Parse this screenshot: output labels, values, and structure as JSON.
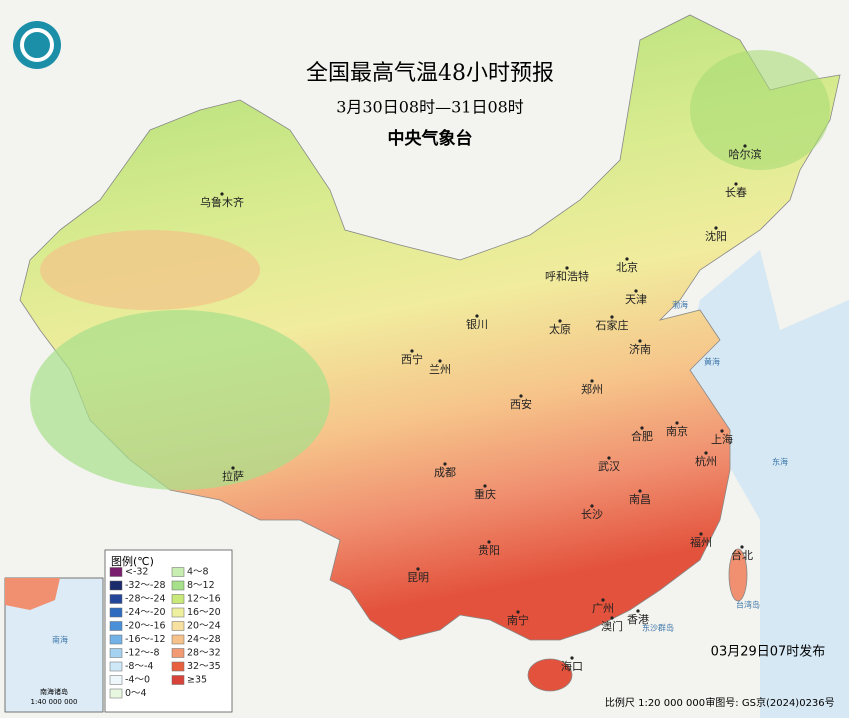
{
  "header": {
    "title": "全国最高气温48小时预报",
    "period": "3月30日08时—31日08时",
    "issuer": "中央气象台"
  },
  "cities": [
    "乌鲁木齐",
    "呼和浩特",
    "北京",
    "天津",
    "沈阳",
    "长春",
    "哈尔滨",
    "银川",
    "太原",
    "石家庄",
    "济南",
    "西宁",
    "兰州",
    "郑州",
    "西安",
    "合肥",
    "南京",
    "上海",
    "杭州",
    "武汉",
    "成都",
    "重庆",
    "拉萨",
    "长沙",
    "南昌",
    "福州",
    "台北",
    "贵阳",
    "昆明",
    "南宁",
    "广州",
    "香港",
    "澳门",
    "海口"
  ],
  "seas": [
    "渤海",
    "黄海",
    "东海",
    "台湾岛",
    "东沙群岛",
    "南海"
  ],
  "legend": {
    "title": "图例(℃)",
    "items": [
      {
        "label": "<-32",
        "color": "#7a1f6e"
      },
      {
        "label": "-32～-28",
        "color": "#1b2a6b"
      },
      {
        "label": "-28～-24",
        "color": "#23459a"
      },
      {
        "label": "-24～-20",
        "color": "#2f6cc0"
      },
      {
        "label": "-20～-16",
        "color": "#4a90d9"
      },
      {
        "label": "-16～-12",
        "color": "#73b2e6"
      },
      {
        "label": "-12～-8",
        "color": "#a5d2f0"
      },
      {
        "label": "-8～-4",
        "color": "#cfe8f7"
      },
      {
        "label": "-4～0",
        "color": "#eef7fb"
      },
      {
        "label": "0～4",
        "color": "#e8f7e0"
      },
      {
        "label": "4～8",
        "color": "#c8edb0"
      },
      {
        "label": "8～12",
        "color": "#a6e08a"
      },
      {
        "label": "12～16",
        "color": "#c9e87a"
      },
      {
        "label": "16～20",
        "color": "#eef0a0"
      },
      {
        "label": "20～24",
        "color": "#f7e0a0"
      },
      {
        "label": "24～28",
        "color": "#f6c28c"
      },
      {
        "label": "28～32",
        "color": "#f29a74"
      },
      {
        "label": "32～35",
        "color": "#e8603e"
      },
      {
        "label": "≥35",
        "color": "#d8443a"
      }
    ]
  },
  "inset": {
    "title": "南海诸岛",
    "scale": "1:40 000 000"
  },
  "footer": {
    "issued": "03月29日07时发布",
    "scale": "比例尺 1:20 000 000",
    "approval": "审图号: GS京(2024)0236号"
  }
}
